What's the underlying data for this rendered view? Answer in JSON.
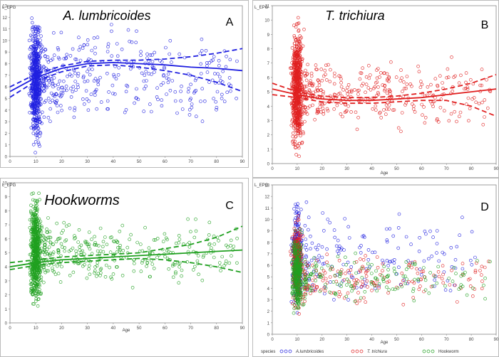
{
  "figure": {
    "colors": {
      "blue": "#2020e0",
      "red": "#e02020",
      "green": "#20a020",
      "axis": "#888888",
      "grid": "#dddddd"
    }
  },
  "chart_data": [
    {
      "type": "scatter",
      "panel": "A",
      "title": "A. lumbricoides",
      "ylabel": "L_EPG",
      "xlabel": "",
      "xlim": [
        0,
        90
      ],
      "ylim": [
        0,
        13
      ],
      "xticks": [
        0,
        10,
        20,
        30,
        40,
        50,
        60,
        70,
        80,
        90
      ],
      "yticks": [
        0,
        1,
        2,
        3,
        4,
        5,
        6,
        7,
        8,
        9,
        10,
        11,
        12,
        13
      ],
      "color": "blue",
      "cluster": {
        "x_range": [
          7,
          13
        ],
        "y_range": [
          0.3,
          12.5
        ],
        "n": 600
      },
      "scatter": {
        "x_range": [
          13,
          88
        ],
        "y_range": [
          1.5,
          12.2
        ],
        "n": 340
      },
      "fit": {
        "x": [
          0,
          10,
          20,
          30,
          40,
          50,
          60,
          70,
          80,
          90
        ],
        "y": [
          5.6,
          6.8,
          7.6,
          8.0,
          8.1,
          8.0,
          7.9,
          7.7,
          7.6,
          7.4
        ]
      },
      "ci_upper": {
        "x": [
          0,
          10,
          20,
          30,
          40,
          50,
          60,
          70,
          80,
          90
        ],
        "y": [
          6.0,
          7.1,
          7.8,
          8.2,
          8.3,
          8.3,
          8.4,
          8.6,
          8.9,
          9.3
        ]
      },
      "ci_lower": {
        "x": [
          0,
          10,
          20,
          30,
          40,
          50,
          60,
          70,
          80,
          90
        ],
        "y": [
          5.1,
          6.5,
          7.3,
          7.8,
          7.9,
          7.7,
          7.4,
          7.0,
          6.4,
          5.6
        ]
      }
    },
    {
      "type": "scatter",
      "panel": "B",
      "title": "T. trichiura",
      "ylabel": "L_EPG",
      "xlabel": "Age",
      "xlim": [
        0,
        90
      ],
      "ylim": [
        0,
        11
      ],
      "xticks": [
        0,
        10,
        20,
        30,
        40,
        50,
        60,
        70,
        80,
        90
      ],
      "yticks": [
        0,
        1,
        2,
        3,
        4,
        5,
        6,
        7,
        8,
        9,
        10,
        11
      ],
      "color": "red",
      "cluster": {
        "x_range": [
          7,
          13
        ],
        "y_range": [
          0.2,
          10.5
        ],
        "n": 650
      },
      "scatter": {
        "x_range": [
          13,
          88
        ],
        "y_range": [
          1.8,
          8.0
        ],
        "n": 340
      },
      "fit": {
        "x": [
          0,
          10,
          20,
          30,
          40,
          50,
          60,
          70,
          80,
          90
        ],
        "y": [
          5.2,
          4.8,
          4.5,
          4.4,
          4.4,
          4.5,
          4.6,
          4.8,
          5.0,
          5.2
        ]
      },
      "ci_upper": {
        "x": [
          0,
          10,
          20,
          30,
          40,
          50,
          60,
          70,
          80,
          90
        ],
        "y": [
          5.6,
          5.0,
          4.7,
          4.6,
          4.6,
          4.7,
          4.9,
          5.2,
          5.6,
          6.2
        ]
      },
      "ci_lower": {
        "x": [
          0,
          10,
          20,
          30,
          40,
          50,
          60,
          70,
          80,
          90
        ],
        "y": [
          4.8,
          4.6,
          4.3,
          4.2,
          4.2,
          4.3,
          4.4,
          4.4,
          4.0,
          3.3
        ]
      }
    },
    {
      "type": "scatter",
      "panel": "C",
      "title": "Hookworms",
      "ylabel": "L_EPG",
      "xlabel": "Age",
      "xlim": [
        0,
        90
      ],
      "ylim": [
        0,
        10
      ],
      "xticks": [
        0,
        10,
        20,
        30,
        40,
        50,
        60,
        70,
        80,
        90
      ],
      "yticks": [
        0,
        1,
        2,
        3,
        4,
        5,
        6,
        7,
        8,
        9,
        10
      ],
      "color": "green",
      "cluster": {
        "x_range": [
          7,
          13
        ],
        "y_range": [
          0.5,
          9.6
        ],
        "n": 600
      },
      "scatter": {
        "x_range": [
          13,
          88
        ],
        "y_range": [
          2.0,
          8.0
        ],
        "n": 330
      },
      "fit": {
        "x": [
          0,
          10,
          20,
          30,
          40,
          50,
          60,
          70,
          80,
          90
        ],
        "y": [
          4.0,
          4.3,
          4.5,
          4.6,
          4.7,
          4.8,
          4.9,
          5.0,
          5.1,
          5.2
        ]
      },
      "ci_upper": {
        "x": [
          0,
          10,
          20,
          30,
          40,
          50,
          60,
          70,
          80,
          90
        ],
        "y": [
          4.3,
          4.5,
          4.7,
          4.8,
          4.9,
          5.0,
          5.3,
          5.6,
          6.1,
          6.9
        ]
      },
      "ci_lower": {
        "x": [
          0,
          10,
          20,
          30,
          40,
          50,
          60,
          70,
          80,
          90
        ],
        "y": [
          3.8,
          4.1,
          4.3,
          4.4,
          4.5,
          4.6,
          4.5,
          4.3,
          4.0,
          3.6
        ]
      }
    },
    {
      "type": "scatter",
      "panel": "D",
      "title": "",
      "ylabel": "L_EPG",
      "xlabel": "Age",
      "xlim": [
        0,
        90
      ],
      "ylim": [
        0,
        13
      ],
      "xticks": [
        0,
        10,
        20,
        30,
        40,
        50,
        60,
        70,
        80,
        90
      ],
      "yticks": [
        0,
        1,
        2,
        3,
        4,
        5,
        6,
        7,
        8,
        9,
        10,
        11,
        12,
        13
      ],
      "legend": {
        "title": "species",
        "position": "bottom"
      },
      "series": [
        {
          "name": "A.lumbricoides",
          "color": "blue",
          "cluster": {
            "x_range": [
              7,
              13
            ],
            "y_range": [
              1.5,
              12.3
            ],
            "n": 260
          },
          "scatter": {
            "x_range": [
              13,
              82
            ],
            "y_range": [
              2.0,
              12.0
            ],
            "n": 160
          }
        },
        {
          "name": "T. trichiura",
          "color": "red",
          "cluster": {
            "x_range": [
              7,
              13
            ],
            "y_range": [
              1.5,
              10.6
            ],
            "n": 280
          },
          "scatter": {
            "x_range": [
              13,
              88
            ],
            "y_range": [
              2.0,
              7.5
            ],
            "n": 170
          }
        },
        {
          "name": "Hookworm",
          "color": "green",
          "cluster": {
            "x_range": [
              7,
              13
            ],
            "y_range": [
              1.0,
              9.5
            ],
            "n": 300
          },
          "scatter": {
            "x_range": [
              13,
              88
            ],
            "y_range": [
              2.0,
              7.8
            ],
            "n": 160
          }
        }
      ]
    }
  ]
}
